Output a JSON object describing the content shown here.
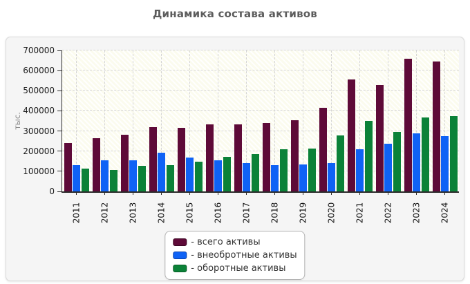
{
  "page": {
    "title": "Динамика состава активов"
  },
  "chart_data": {
    "type": "bar",
    "title": "Динамика состава активов",
    "title_color": "#5c5c5c",
    "xlabel": "",
    "ylabel": "тыс.",
    "ylim": [
      0,
      700000
    ],
    "ytick_step": 100000,
    "ytick_labels": [
      "0",
      "100000",
      "200000",
      "300000",
      "400000",
      "500000",
      "600000",
      "700000"
    ],
    "grid": "dashed horizontal and vertical, hatched plot background",
    "legend_position": "bottom-center",
    "categories": [
      "2011",
      "2012",
      "2013",
      "2014",
      "2015",
      "2016",
      "2017",
      "2018",
      "2019",
      "2020",
      "2021",
      "2022",
      "2023",
      "2024"
    ],
    "series": [
      {
        "name": "всего активы",
        "legend_label": "- всего активы",
        "color": "#5e0a38",
        "border_color": "#3c0523",
        "values": [
          242000,
          263000,
          283000,
          318000,
          316000,
          333000,
          332000,
          340000,
          352000,
          417000,
          555000,
          530000,
          659000,
          644000
        ]
      },
      {
        "name": "внеобротные активы",
        "legend_label": "- внеобротные активы",
        "color": "#0f62f5",
        "border_color": "#0a43ad",
        "values": [
          131000,
          153000,
          156000,
          191000,
          169000,
          156000,
          141000,
          131000,
          134000,
          140000,
          209000,
          236000,
          290000,
          274000
        ]
      },
      {
        "name": "оборотные активы",
        "legend_label": "- оборотные активы",
        "color": "#0b8238",
        "border_color": "#065c24",
        "values": [
          112000,
          107000,
          126000,
          130000,
          147000,
          172000,
          186000,
          210000,
          214000,
          277000,
          349000,
          295000,
          368000,
          373000
        ]
      }
    ]
  }
}
